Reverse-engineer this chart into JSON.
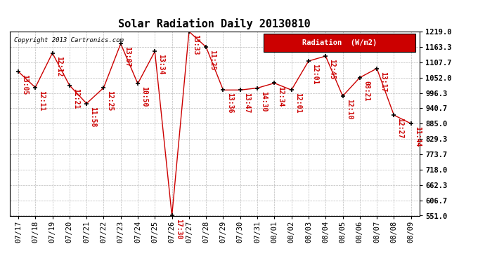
{
  "title": "Solar Radiation Daily 20130810",
  "copyright": "Copyright 2013 Cartronics.com",
  "legend_label": "Radiation  (W/m2)",
  "x_labels": [
    "07/17",
    "07/18",
    "07/19",
    "07/20",
    "07/21",
    "07/22",
    "07/23",
    "07/24",
    "07/25",
    "07/26",
    "07/27",
    "07/28",
    "07/29",
    "07/30",
    "07/31",
    "08/01",
    "08/02",
    "08/03",
    "08/04",
    "08/05",
    "08/06",
    "08/07",
    "08/08",
    "08/09"
  ],
  "y_values": [
    1074,
    1016,
    1141,
    1024,
    958,
    1015,
    1175,
    1030,
    1147,
    551,
    1219,
    1163,
    1007,
    1007,
    1014,
    1032,
    1007,
    1112,
    1130,
    985,
    1052,
    1085,
    916,
    885
  ],
  "point_labels": [
    "13:05",
    "12:11",
    "12:12",
    "12:21",
    "11:58",
    "12:25",
    "13:07",
    "10:50",
    "13:34",
    "17:30",
    "13:33",
    "11:25",
    "13:36",
    "13:47",
    "14:30",
    "12:34",
    "12:01",
    "12:01",
    "12:45",
    "12:10",
    "08:21",
    "13:17",
    "12:27",
    "11:44"
  ],
  "ylim_min": 551.0,
  "ylim_max": 1219.0,
  "yticks": [
    551.0,
    606.7,
    662.3,
    718.0,
    773.7,
    829.3,
    885.0,
    940.7,
    996.3,
    1052.0,
    1107.7,
    1163.3,
    1219.0
  ],
  "line_color": "#cc0000",
  "marker_color": "black",
  "bg_color": "#ffffff",
  "grid_color": "#aaaaaa",
  "title_fontsize": 11,
  "label_fontsize": 7,
  "tick_fontsize": 7.5,
  "legend_bg": "#cc0000",
  "legend_text_color": "#ffffff"
}
